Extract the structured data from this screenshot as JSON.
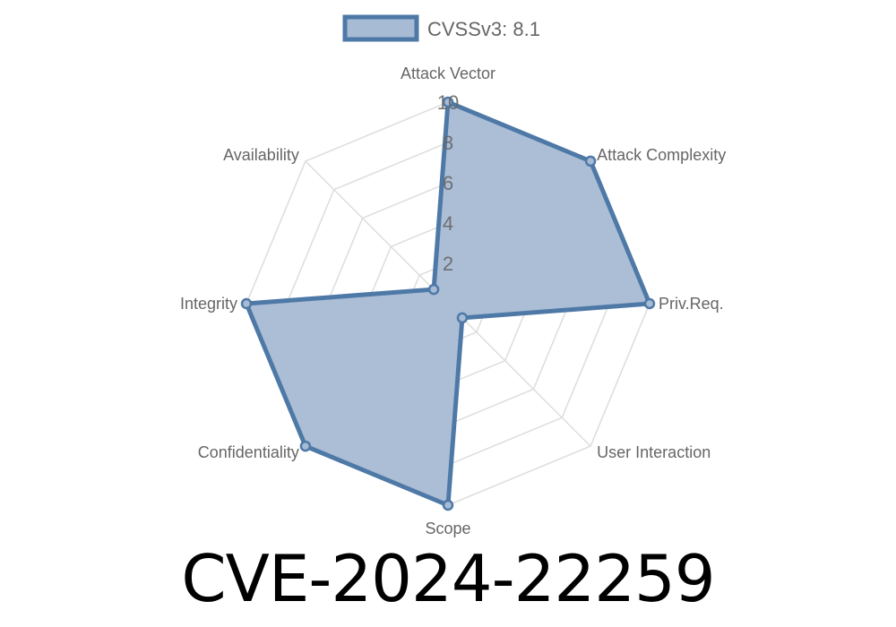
{
  "chart_data": {
    "type": "radar",
    "categories": [
      "Attack Vector",
      "Attack Complexity",
      "Priv.Req.",
      "User Interaction",
      "Scope",
      "Confidentiality",
      "Integrity",
      "Availability"
    ],
    "series": [
      {
        "name": "CVSSv3: 8.1",
        "values": [
          10,
          10,
          10,
          1,
          10,
          10,
          10,
          1
        ]
      }
    ],
    "rlim": [
      0,
      10
    ],
    "ticks": [
      "2",
      "4",
      "6",
      "8",
      "10"
    ],
    "tick_values": [
      2,
      4,
      6,
      8,
      10
    ],
    "grid": true,
    "legend_position": "top",
    "colors": {
      "line": "#4e79a7",
      "fill": "#a8bbd4",
      "grid": "#dddddd"
    }
  },
  "title": "CVE-2024-22259"
}
